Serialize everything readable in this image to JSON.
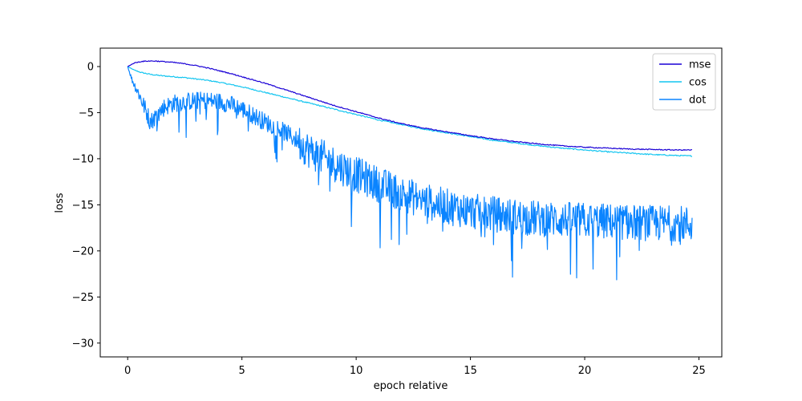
{
  "chart_data": {
    "type": "line",
    "title": "",
    "xlabel": "epoch relative",
    "ylabel": "loss",
    "xlim": [
      -1.2,
      26.0
    ],
    "ylim": [
      -31.5,
      2.0
    ],
    "xticks": [
      0,
      5,
      10,
      15,
      20,
      25
    ],
    "yticks": [
      0,
      -5,
      -10,
      -15,
      -20,
      -25,
      -30
    ],
    "xtick_labels": [
      "0",
      "5",
      "10",
      "15",
      "20",
      "25"
    ],
    "ytick_labels": [
      "0",
      "−5",
      "−10",
      "−15",
      "−20",
      "−25",
      "−30"
    ],
    "grid": false,
    "legend": "top-right",
    "series": [
      {
        "name": "mse",
        "color": "#1a00d6",
        "x": [
          0,
          0.3,
          0.6,
          0.9,
          1.2,
          1.5,
          2,
          2.5,
          3,
          3.5,
          4,
          4.5,
          5,
          5.5,
          6,
          7,
          8,
          9,
          10,
          11,
          12,
          13,
          14,
          15,
          16,
          17,
          18,
          19,
          20,
          21,
          22,
          23,
          24,
          24.7
        ],
        "y": [
          0,
          0.4,
          0.55,
          0.6,
          0.6,
          0.55,
          0.45,
          0.3,
          0.1,
          -0.15,
          -0.45,
          -0.75,
          -1.1,
          -1.45,
          -1.8,
          -2.6,
          -3.4,
          -4.2,
          -4.9,
          -5.6,
          -6.2,
          -6.7,
          -7.1,
          -7.5,
          -7.85,
          -8.15,
          -8.4,
          -8.6,
          -8.75,
          -8.85,
          -8.95,
          -9.0,
          -9.05,
          -9.05
        ],
        "noise": 0.05
      },
      {
        "name": "cos",
        "color": "#12c5f0",
        "x": [
          0,
          0.3,
          0.6,
          1,
          1.5,
          2,
          2.5,
          3,
          3.5,
          4,
          5,
          6,
          7,
          8,
          9,
          10,
          11,
          12,
          13,
          14,
          15,
          16,
          17,
          18,
          19,
          20,
          21,
          22,
          23,
          24,
          24.7
        ],
        "y": [
          0,
          -0.4,
          -0.65,
          -0.85,
          -1.0,
          -1.1,
          -1.2,
          -1.35,
          -1.5,
          -1.7,
          -2.2,
          -2.8,
          -3.4,
          -4.0,
          -4.6,
          -5.2,
          -5.8,
          -6.3,
          -6.8,
          -7.2,
          -7.6,
          -8.0,
          -8.3,
          -8.6,
          -8.85,
          -9.05,
          -9.25,
          -9.4,
          -9.55,
          -9.65,
          -9.7
        ],
        "noise": 0.06
      },
      {
        "name": "dot",
        "color": "#0a84ff",
        "x": [
          0,
          0.2,
          0.5,
          0.8,
          1.0,
          1.3,
          1.6,
          2,
          2.5,
          3,
          3.5,
          4,
          4.5,
          5,
          5.5,
          6,
          6.5,
          7,
          7.5,
          8,
          9,
          10,
          11,
          12,
          13,
          14,
          15,
          16,
          17,
          18,
          19,
          20,
          21,
          22,
          23,
          24,
          24.7
        ],
        "y": [
          0,
          -1.5,
          -3.0,
          -4.8,
          -6.0,
          -5.2,
          -4.4,
          -4.0,
          -3.8,
          -3.7,
          -3.7,
          -3.8,
          -4.1,
          -4.6,
          -5.3,
          -6.0,
          -6.6,
          -7.3,
          -8.2,
          -9.2,
          -10.5,
          -11.7,
          -12.8,
          -13.8,
          -14.6,
          -15.2,
          -15.7,
          -16.0,
          -16.3,
          -16.5,
          -16.6,
          -16.7,
          -16.8,
          -16.9,
          -17.0,
          -17.0,
          -17.1
        ],
        "noise": 1.4,
        "spike_depth": 5.5
      }
    ]
  }
}
